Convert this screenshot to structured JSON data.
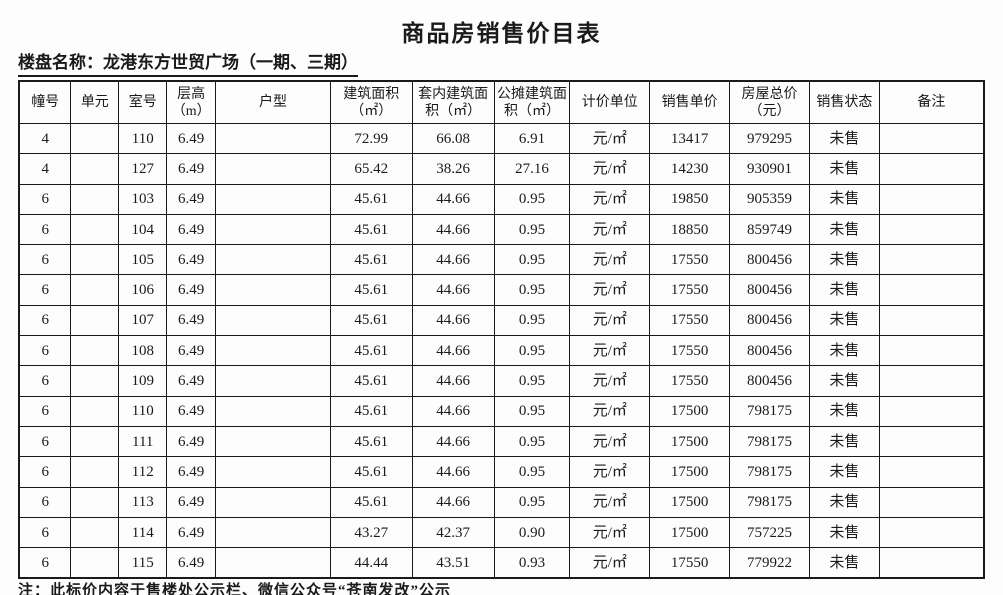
{
  "title": "商品房销售价目表",
  "subtitle": "楼盘名称：龙港东方世贸广场（一期、三期）",
  "note": "注：此标价内容于售楼处公示栏、微信公众号“苍南发改”公示",
  "table": {
    "columns": [
      {
        "label": "幢号"
      },
      {
        "label": "单元"
      },
      {
        "label": "室号"
      },
      {
        "label": "层高\n（m）"
      },
      {
        "label": "户型"
      },
      {
        "label": "建筑面积\n（㎡）"
      },
      {
        "label": "套内建筑面\n积（㎡）"
      },
      {
        "label": "公摊建筑面\n积（㎡）"
      },
      {
        "label": "计价单位"
      },
      {
        "label": "销售单价"
      },
      {
        "label": "房屋总价\n（元）"
      },
      {
        "label": "销售状态"
      },
      {
        "label": "备注"
      }
    ],
    "rows": [
      [
        "4",
        "",
        "110",
        "6.49",
        "",
        "72.99",
        "66.08",
        "6.91",
        "元/㎡",
        "13417",
        "979295",
        "未售",
        ""
      ],
      [
        "4",
        "",
        "127",
        "6.49",
        "",
        "65.42",
        "38.26",
        "27.16",
        "元/㎡",
        "14230",
        "930901",
        "未售",
        ""
      ],
      [
        "6",
        "",
        "103",
        "6.49",
        "",
        "45.61",
        "44.66",
        "0.95",
        "元/㎡",
        "19850",
        "905359",
        "未售",
        ""
      ],
      [
        "6",
        "",
        "104",
        "6.49",
        "",
        "45.61",
        "44.66",
        "0.95",
        "元/㎡",
        "18850",
        "859749",
        "未售",
        ""
      ],
      [
        "6",
        "",
        "105",
        "6.49",
        "",
        "45.61",
        "44.66",
        "0.95",
        "元/㎡",
        "17550",
        "800456",
        "未售",
        ""
      ],
      [
        "6",
        "",
        "106",
        "6.49",
        "",
        "45.61",
        "44.66",
        "0.95",
        "元/㎡",
        "17550",
        "800456",
        "未售",
        ""
      ],
      [
        "6",
        "",
        "107",
        "6.49",
        "",
        "45.61",
        "44.66",
        "0.95",
        "元/㎡",
        "17550",
        "800456",
        "未售",
        ""
      ],
      [
        "6",
        "",
        "108",
        "6.49",
        "",
        "45.61",
        "44.66",
        "0.95",
        "元/㎡",
        "17550",
        "800456",
        "未售",
        ""
      ],
      [
        "6",
        "",
        "109",
        "6.49",
        "",
        "45.61",
        "44.66",
        "0.95",
        "元/㎡",
        "17550",
        "800456",
        "未售",
        ""
      ],
      [
        "6",
        "",
        "110",
        "6.49",
        "",
        "45.61",
        "44.66",
        "0.95",
        "元/㎡",
        "17500",
        "798175",
        "未售",
        ""
      ],
      [
        "6",
        "",
        "111",
        "6.49",
        "",
        "45.61",
        "44.66",
        "0.95",
        "元/㎡",
        "17500",
        "798175",
        "未售",
        ""
      ],
      [
        "6",
        "",
        "112",
        "6.49",
        "",
        "45.61",
        "44.66",
        "0.95",
        "元/㎡",
        "17500",
        "798175",
        "未售",
        ""
      ],
      [
        "6",
        "",
        "113",
        "6.49",
        "",
        "45.61",
        "44.66",
        "0.95",
        "元/㎡",
        "17500",
        "798175",
        "未售",
        ""
      ],
      [
        "6",
        "",
        "114",
        "6.49",
        "",
        "43.27",
        "42.37",
        "0.90",
        "元/㎡",
        "17500",
        "757225",
        "未售",
        ""
      ],
      [
        "6",
        "",
        "115",
        "6.49",
        "",
        "44.44",
        "43.51",
        "0.93",
        "元/㎡",
        "17550",
        "779922",
        "未售",
        ""
      ]
    ]
  }
}
